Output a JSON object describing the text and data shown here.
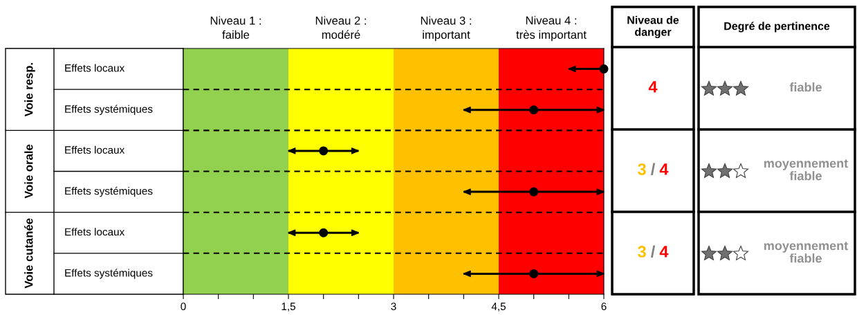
{
  "chart_data": [
    {
      "type": "scatter",
      "orientation": "horizontal",
      "categories": [
        "Effets locaux",
        "Effets systémiques",
        "Effets locaux",
        "Effets systémiques",
        "Effets locaux",
        "Effets systémiques"
      ],
      "series": [
        {
          "color": "#000000",
          "values": [
            6,
            5,
            2,
            5,
            2,
            5
          ],
          "errors": [
            [
              5.5,
              6
            ],
            [
              4,
              6
            ],
            [
              1.5,
              2.5
            ],
            [
              4,
              6
            ],
            [
              1.5,
              2.5
            ],
            [
              4,
              6
            ]
          ]
        }
      ],
      "xlim": [
        0,
        6
      ],
      "xticks": [
        0,
        {
          "value": 0.5,
          "label": null
        },
        {
          "value": 1,
          "label": null
        },
        {
          "value": 1.5,
          "label": "1,5"
        },
        {
          "value": 2,
          "label": null
        },
        {
          "value": 2.5,
          "label": null
        },
        3,
        {
          "value": 3.5,
          "label": null
        },
        {
          "value": 4,
          "label": null
        },
        {
          "value": 4.5,
          "label": "4,5"
        },
        {
          "value": 5,
          "label": null
        },
        {
          "value": 5.5,
          "label": null
        },
        6
      ],
      "bands": [
        {
          "axis": "x",
          "from": 0,
          "to": 1.5,
          "label": "Niveau 1 :\nfaible",
          "color": "#92d050"
        },
        {
          "axis": "x",
          "from": 1.5,
          "to": 3,
          "label": "Niveau 2 :\nmodéré",
          "color": "#ffff00"
        },
        {
          "axis": "x",
          "from": 3,
          "to": 4.5,
          "label": "Niveau 3 :\nimportant",
          "color": "#ffc000"
        },
        {
          "axis": "x",
          "from": 4.5,
          "to": 6,
          "label": "Niveau 4 :\ntrès important",
          "color": "#ff0000"
        }
      ],
      "annotations": [
        "Voie resp.",
        "Voie orale",
        "Voie cutanée"
      ],
      "marker": "circle",
      "tick_labels": "x"
    },
    {
      "type": "other",
      "categories": [
        "Niveau de\ndanger",
        "Degré de pertinence"
      ],
      "annotations": [
        "4",
        "fiable",
        "3 / 4",
        "moyennement fiable",
        "3 / 4",
        "moyennement fiable"
      ]
    }
  ]
}
